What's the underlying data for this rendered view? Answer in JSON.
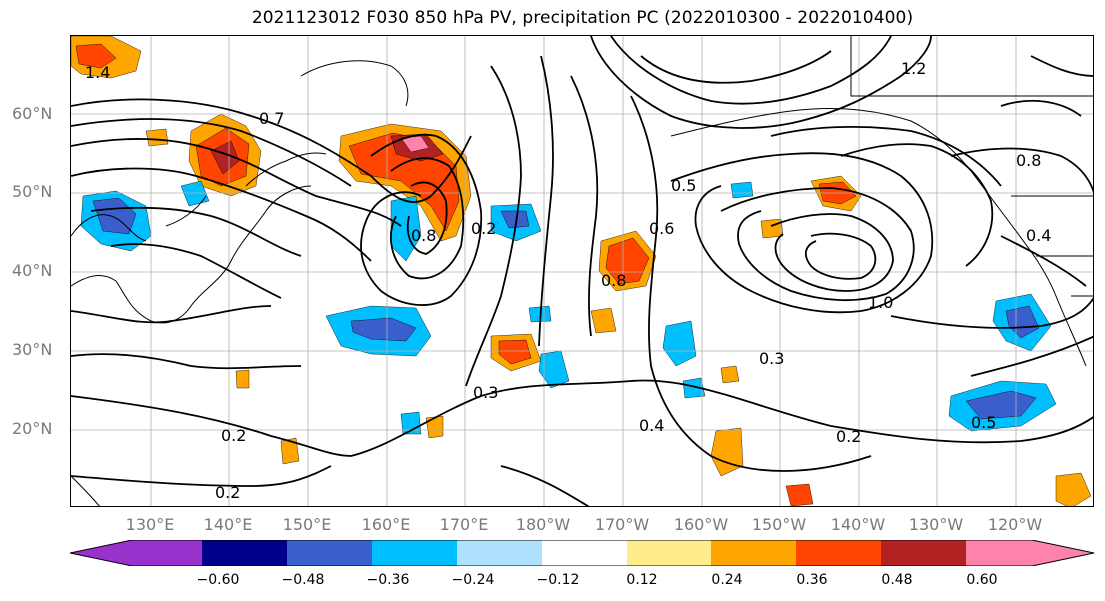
{
  "title": "2021123012 F030 850 hPa PV, precipitation PC (2022010300 - 2022010400)",
  "lat_labels": [
    "60°N",
    "50°N",
    "40°N",
    "30°N",
    "20°N"
  ],
  "lon_labels": [
    "130°E",
    "140°E",
    "150°E",
    "160°E",
    "170°E",
    "180°W",
    "170°W",
    "160°W",
    "150°W",
    "140°W",
    "130°W",
    "120°W"
  ],
  "colorbar": {
    "ticks": [
      "−0.60",
      "−0.48",
      "−0.36",
      "−0.24",
      "−0.12",
      "0.12",
      "0.24",
      "0.36",
      "0.48",
      "0.60"
    ],
    "colors": [
      "#9932cc",
      "#00008b",
      "#3a5fcd",
      "#00bfff",
      "#b0e2ff",
      "#ffffff",
      "#ffec8b",
      "#ffa500",
      "#ff4500",
      "#b22222",
      "#ff82ab"
    ]
  },
  "contour_labels": [
    "0.7",
    "0.2",
    "0.2",
    "0.2",
    "0.3",
    "0.3",
    "0.4",
    "0.4",
    "0.5",
    "0.5",
    "0.6",
    "0.8",
    "0.8",
    "0.8",
    "1.0",
    "0.2",
    "1.2",
    "1.4"
  ]
}
